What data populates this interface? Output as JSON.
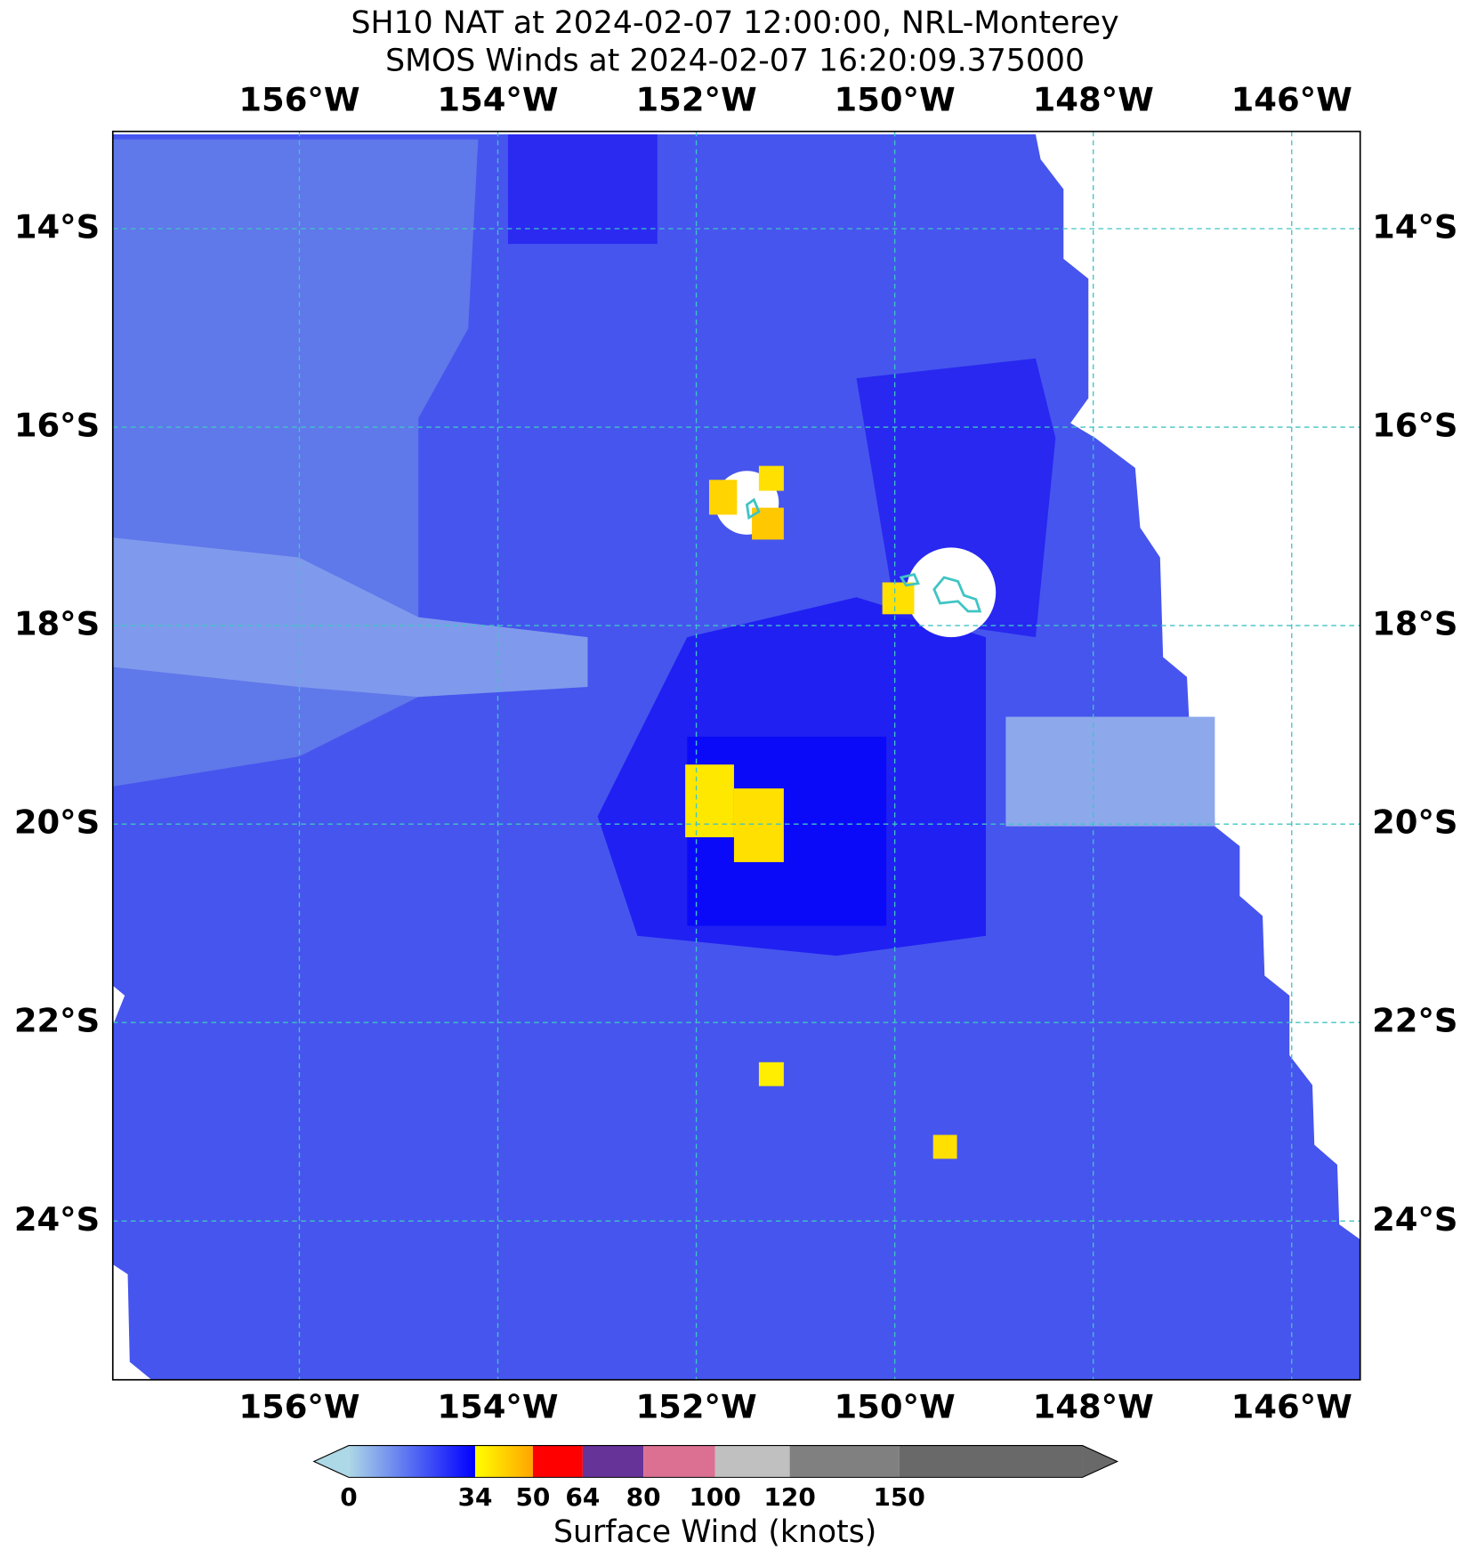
{
  "chart_data": {
    "type": "map",
    "title": "SH10 NAT at 2024-02-07 12:00:00, NRL-Monterey",
    "subtitle": "SMOS Winds at 2024-02-07 16:20:09.375000",
    "xlim": [
      -157.88,
      -145.31
    ],
    "ylim": [
      -13.02,
      -25.6
    ],
    "xticks": [
      {
        "value": -156,
        "label": "156°W"
      },
      {
        "value": -154,
        "label": "154°W"
      },
      {
        "value": -152,
        "label": "152°W"
      },
      {
        "value": -150,
        "label": "150°W"
      },
      {
        "value": -148,
        "label": "148°W"
      },
      {
        "value": -146,
        "label": "146°W"
      }
    ],
    "yticks": [
      {
        "value": -14,
        "label": "14°S"
      },
      {
        "value": -16,
        "label": "16°S"
      },
      {
        "value": -18,
        "label": "18°S"
      },
      {
        "value": -20,
        "label": "20°S"
      },
      {
        "value": -22,
        "label": "22°S"
      },
      {
        "value": -24,
        "label": "24°S"
      }
    ],
    "grid": true,
    "grid_color": "#40c4c4",
    "colorbar": {
      "label": "Surface Wind (knots)",
      "ticks": [
        0,
        34,
        50,
        64,
        80,
        100,
        120,
        150
      ],
      "colors": [
        [
          "#add8e6",
          "#0000ff"
        ],
        [
          "#ffff00",
          "#ffa500"
        ],
        "#ff0000",
        "#663399",
        "#db7093",
        "#c0c0c0",
        "#808080",
        "#696969"
      ]
    }
  }
}
